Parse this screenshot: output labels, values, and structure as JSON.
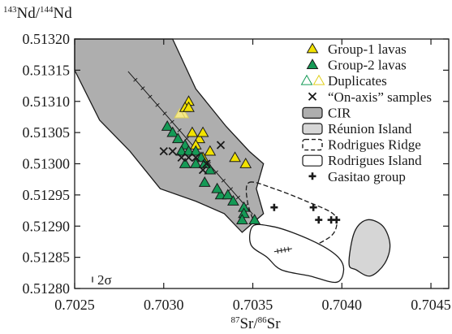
{
  "chart_data": {
    "type": "scatter",
    "title": "",
    "ylabel_parts": {
      "sup1": "143",
      "main1": "Nd/",
      "sup2": "144",
      "main2": "Nd"
    },
    "xlabel_parts": {
      "sup1": "87",
      "main1": "Sr/",
      "sup2": "86",
      "main2": "Sr"
    },
    "xlim": [
      0.7025,
      0.7046
    ],
    "ylim": [
      0.5128,
      0.5132
    ],
    "x_ticks": [
      "0.7025",
      "0.7030",
      "0.7035",
      "0.7040",
      "0.7045"
    ],
    "x_tick_values": [
      0.7025,
      0.703,
      0.7035,
      0.704,
      0.7045
    ],
    "y_ticks": [
      "0.51320",
      "0.51315",
      "0.51310",
      "0.51305",
      "0.51300",
      "0.51295",
      "0.51290",
      "0.51285",
      "0.51280"
    ],
    "y_tick_values": [
      0.5132,
      0.51315,
      0.5131,
      0.51305,
      0.513,
      0.51295,
      0.5129,
      0.51285,
      0.5128
    ],
    "error_label": "2σ",
    "grid": false,
    "legend_position": "top-right",
    "legend": [
      {
        "label": "Group-1 lavas",
        "marker": "triangle-yellow"
      },
      {
        "label": "Group-2 lavas",
        "marker": "triangle-green"
      },
      {
        "label": "Duplicates",
        "marker": "triangle-open-pair"
      },
      {
        "label": "“On-axis” samples",
        "marker": "x-cross"
      },
      {
        "label": "CIR",
        "marker": "box-dark-gray"
      },
      {
        "label": "Réunion Island",
        "marker": "box-light-gray"
      },
      {
        "label": "Rodrigues Ridge",
        "marker": "box-dashed"
      },
      {
        "label": "Rodrigues Island",
        "marker": "box-open"
      },
      {
        "label": "Gasitao group",
        "marker": "plus-cross"
      }
    ],
    "colors": {
      "group1_fill": "#f2e200",
      "group2_fill": "#159a56",
      "cir_fill": "#aeaeae",
      "reunion_fill": "#d6d6d6",
      "duplicate_open": "#f5e88a",
      "marker_edge": "#1a1a1a"
    },
    "fields": {
      "cir": [
        [
          0.7025,
          0.5132
        ],
        [
          0.70305,
          0.5132
        ],
        [
          0.70318,
          0.51312
        ],
        [
          0.70335,
          0.51306
        ],
        [
          0.70348,
          0.51302
        ],
        [
          0.70356,
          0.513
        ],
        [
          0.70352,
          0.51296
        ],
        [
          0.70356,
          0.51292
        ],
        [
          0.70344,
          0.51289
        ],
        [
          0.70334,
          0.51292
        ],
        [
          0.70318,
          0.51294
        ],
        [
          0.70298,
          0.51296
        ],
        [
          0.70281,
          0.51302
        ],
        [
          0.70264,
          0.51307
        ],
        [
          0.7025,
          0.51315
        ]
      ],
      "rodrigues_ridge": [
        [
          0.70348,
          0.51297
        ],
        [
          0.70362,
          0.51296
        ],
        [
          0.7038,
          0.51294
        ],
        [
          0.70395,
          0.51292
        ],
        [
          0.70397,
          0.5129
        ],
        [
          0.70392,
          0.51288
        ],
        [
          0.70375,
          0.51286
        ],
        [
          0.70361,
          0.51287
        ],
        [
          0.70352,
          0.5129
        ],
        [
          0.70347,
          0.51294
        ]
      ],
      "rodrigues_island": [
        [
          0.7035,
          0.5129
        ],
        [
          0.7036,
          0.5129
        ],
        [
          0.70372,
          0.51289
        ],
        [
          0.70388,
          0.51287
        ],
        [
          0.70398,
          0.51285
        ],
        [
          0.70401,
          0.51283
        ],
        [
          0.70397,
          0.51281
        ],
        [
          0.70382,
          0.51282
        ],
        [
          0.70366,
          0.51283
        ],
        [
          0.70358,
          0.51285
        ],
        [
          0.70349,
          0.51287
        ]
      ],
      "reunion_island": [
        [
          0.70404,
          0.51284
        ],
        [
          0.70407,
          0.51289
        ],
        [
          0.70414,
          0.51291
        ],
        [
          0.70423,
          0.5129
        ],
        [
          0.70427,
          0.51287
        ],
        [
          0.70424,
          0.51284
        ],
        [
          0.70416,
          0.51282
        ],
        [
          0.70408,
          0.51283
        ]
      ]
    },
    "trend_lines": [
      {
        "from": [
          0.7028,
          0.513148
        ],
        "to": [
          0.7035,
          0.512919
        ]
      },
      {
        "from": [
          0.70362,
          0.512859
        ],
        "to": [
          0.70372,
          0.512864
        ]
      }
    ],
    "series": [
      {
        "name": "Group-1 lavas",
        "points": [
          [
            0.70316,
            0.51305
          ],
          [
            0.7032,
            0.51304
          ],
          [
            0.70322,
            0.51305
          ],
          [
            0.70326,
            0.51302
          ],
          [
            0.70318,
            0.51303
          ],
          [
            0.7034,
            0.51301
          ],
          [
            0.70346,
            0.513
          ],
          [
            0.70322,
            0.51301
          ],
          [
            0.70314,
            0.5131
          ],
          [
            0.70312,
            0.51309
          ],
          [
            0.70314,
            0.51309
          ]
        ]
      },
      {
        "name": "Group-2 lavas",
        "points": [
          [
            0.70302,
            0.51306
          ],
          [
            0.70305,
            0.51305
          ],
          [
            0.70308,
            0.51304
          ],
          [
            0.70312,
            0.51303
          ],
          [
            0.7031,
            0.51302
          ],
          [
            0.70314,
            0.51302
          ],
          [
            0.70318,
            0.51302
          ],
          [
            0.70321,
            0.51301
          ],
          [
            0.70312,
            0.513
          ],
          [
            0.70318,
            0.513
          ],
          [
            0.70326,
            0.51299
          ],
          [
            0.70323,
            0.51297
          ],
          [
            0.70332,
            0.51295
          ],
          [
            0.7033,
            0.51296
          ],
          [
            0.70336,
            0.51295
          ],
          [
            0.70339,
            0.51294
          ],
          [
            0.70345,
            0.51293
          ],
          [
            0.70345,
            0.51292
          ],
          [
            0.70351,
            0.51291
          ],
          [
            0.70344,
            0.51291
          ],
          [
            0.70323,
            0.513
          ]
        ]
      },
      {
        "name": "Duplicates",
        "points": [
          [
            0.70311,
            0.51308
          ],
          [
            0.70309,
            0.51308
          ]
        ]
      },
      {
        "name": "“On-axis” samples",
        "points": [
          [
            0.703,
            0.51302
          ],
          [
            0.70305,
            0.51302
          ],
          [
            0.7031,
            0.51301
          ],
          [
            0.70314,
            0.51301
          ],
          [
            0.70318,
            0.51301
          ],
          [
            0.70322,
            0.51299
          ],
          [
            0.70324,
            0.513
          ],
          [
            0.70332,
            0.51303
          ]
        ]
      },
      {
        "name": "Gasitao group",
        "points": [
          [
            0.70362,
            0.51293
          ],
          [
            0.70384,
            0.51293
          ],
          [
            0.70394,
            0.51291
          ],
          [
            0.70387,
            0.51291
          ],
          [
            0.70397,
            0.51291
          ]
        ]
      }
    ]
  }
}
